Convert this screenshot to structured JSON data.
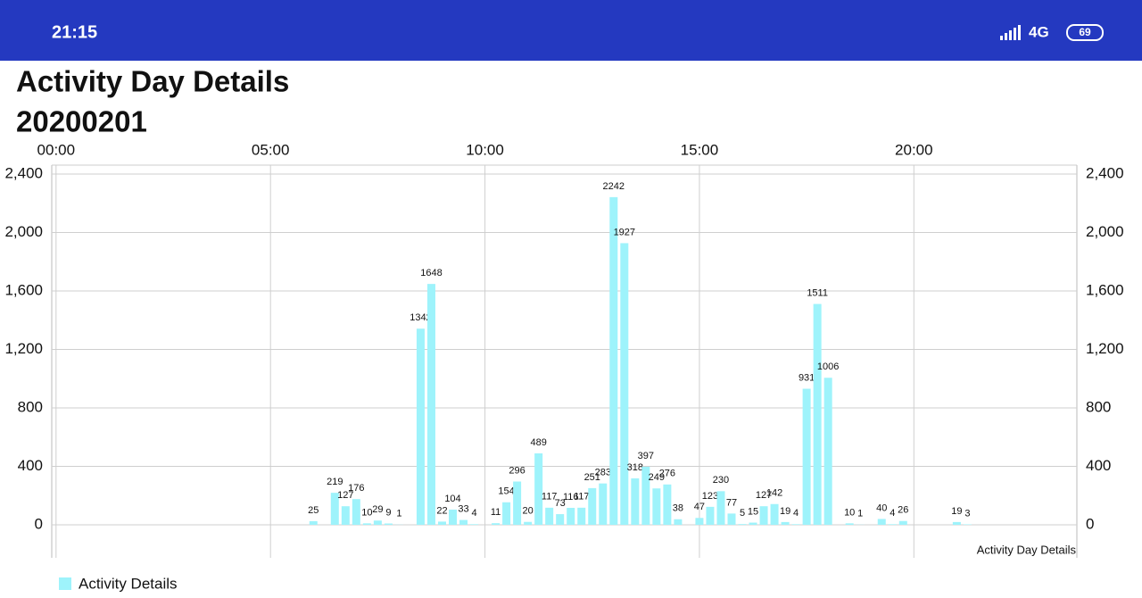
{
  "status_bar": {
    "time": "21:15",
    "network": "4G",
    "battery": "69"
  },
  "header": {
    "title": "Activity Day Details",
    "date": "20200201"
  },
  "chart_data": {
    "type": "bar",
    "description": "Activity Day Details",
    "x": [
      6,
      6.5,
      6.75,
      7,
      7.25,
      7.5,
      7.75,
      8,
      8.5,
      8.75,
      9,
      9.25,
      9.5,
      9.75,
      10.25,
      10.5,
      10.75,
      11,
      11.25,
      11.5,
      11.75,
      12,
      12.25,
      12.5,
      12.75,
      13,
      13.25,
      13.5,
      13.75,
      14,
      14.25,
      14.5,
      15,
      15.25,
      15.5,
      15.75,
      16,
      16.25,
      16.5,
      16.75,
      17,
      17.25,
      17.5,
      17.75,
      18,
      18.5,
      18.75,
      19.25,
      19.5,
      19.75,
      21,
      21.25
    ],
    "series": [
      {
        "name": "Activity Details",
        "color": "#9ef3fb",
        "values": [
          25,
          219,
          127,
          176,
          10,
          29,
          9,
          1,
          1342,
          1648,
          22,
          104,
          33,
          4,
          11,
          154,
          296,
          20,
          489,
          117,
          73,
          116,
          117,
          251,
          283,
          2242,
          1927,
          318,
          397,
          249,
          276,
          38,
          47,
          123,
          230,
          77,
          5,
          15,
          127,
          142,
          19,
          4,
          931,
          1511,
          1006,
          10,
          1,
          40,
          4,
          26,
          19,
          3
        ]
      }
    ],
    "xlim": [
      -0.1,
      23.8
    ],
    "xticks": [
      {
        "value": 0,
        "label": "00:00"
      },
      {
        "value": 5,
        "label": "05:00"
      },
      {
        "value": 10,
        "label": "10:00"
      },
      {
        "value": 15,
        "label": "15:00"
      },
      {
        "value": 20,
        "label": "20:00"
      }
    ],
    "ylim": [
      -226,
      2461
    ],
    "yticks": [
      0,
      400,
      800,
      {
        "value": 1200,
        "label": "1,200"
      },
      {
        "value": 1600,
        "label": "1,600"
      },
      {
        "value": 2000,
        "label": "2,000"
      },
      {
        "value": 2400,
        "label": "2,400"
      }
    ],
    "grid": true
  }
}
